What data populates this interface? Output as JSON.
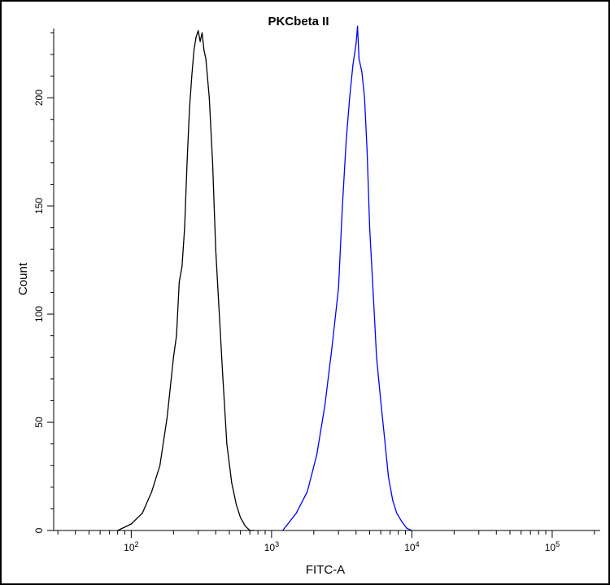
{
  "chart_data": {
    "type": "line",
    "title": "PKCbeta II",
    "xlabel": "FITC-A",
    "ylabel": "Count",
    "x_scale": "log",
    "xlim": [
      28,
      220000
    ],
    "ylim": [
      0,
      232
    ],
    "x_ticks": [
      {
        "value": 100,
        "base": "10",
        "exp": "2"
      },
      {
        "value": 1000,
        "base": "10",
        "exp": "3"
      },
      {
        "value": 10000,
        "base": "10",
        "exp": "4"
      },
      {
        "value": 100000,
        "base": "10",
        "exp": "5"
      }
    ],
    "y_ticks": [
      0,
      50,
      100,
      150,
      200
    ],
    "grid": false,
    "legend": "none",
    "series": [
      {
        "color": "#000000",
        "x": [
          80,
          100,
          120,
          140,
          160,
          180,
          200,
          210,
          220,
          230,
          240,
          250,
          260,
          270,
          280,
          290,
          300,
          310,
          320,
          330,
          340,
          360,
          380,
          400,
          420,
          450,
          480,
          520,
          560,
          600,
          650,
          700,
          750
        ],
        "y": [
          0,
          3,
          8,
          18,
          30,
          52,
          80,
          90,
          115,
          122,
          140,
          170,
          195,
          210,
          222,
          228,
          231,
          226,
          230,
          222,
          218,
          200,
          170,
          130,
          105,
          70,
          40,
          22,
          12,
          6,
          2,
          0,
          0
        ]
      },
      {
        "color": "#0000ff",
        "x": [
          1200,
          1500,
          1800,
          2100,
          2400,
          2700,
          3000,
          3200,
          3400,
          3600,
          3800,
          4000,
          4100,
          4200,
          4400,
          4600,
          4800,
          5000,
          5300,
          5600,
          6000,
          6400,
          6800,
          7300,
          7800,
          8500,
          9200,
          10000
        ],
        "y": [
          0,
          8,
          18,
          35,
          58,
          85,
          112,
          150,
          180,
          200,
          215,
          225,
          233,
          218,
          212,
          200,
          175,
          140,
          110,
          80,
          60,
          42,
          25,
          14,
          8,
          4,
          1,
          0
        ]
      }
    ]
  }
}
